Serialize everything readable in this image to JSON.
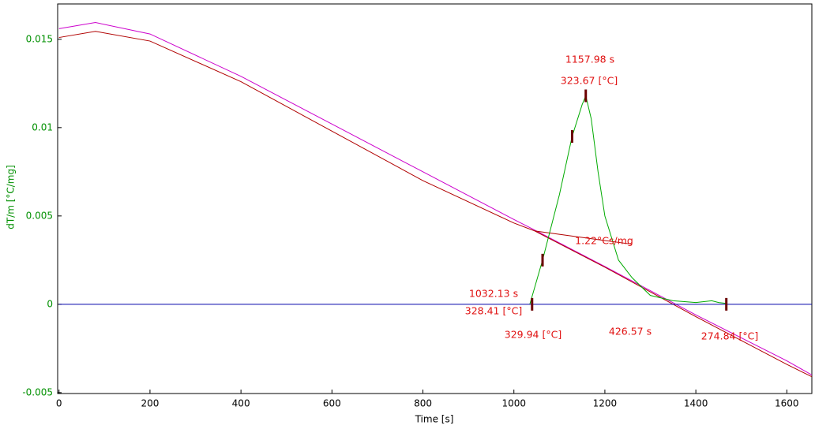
{
  "chart_data": {
    "type": "line",
    "x_label": "Time [s]",
    "y_label": "dT/m  [°C/mg]",
    "xlim": [
      -3,
      1655
    ],
    "ylim": [
      -0.00505,
      0.017
    ],
    "xticks": [
      0,
      200,
      400,
      600,
      800,
      1000,
      1200,
      1400,
      1600
    ],
    "yticks": [
      -0.005,
      0,
      0.005,
      0.01,
      0.015
    ],
    "series": [
      {
        "color": "#cc00cc",
        "x": [
          0,
          80,
          200,
          400,
          600,
          800,
          1000,
          1046,
          1200,
          1400,
          1600,
          1655
        ],
        "values": [
          0.0156,
          0.01595,
          0.0153,
          0.0129,
          0.0102,
          0.0075,
          0.0048,
          0.0042,
          0.00214,
          -0.0006,
          -0.0032,
          -0.004
        ]
      },
      {
        "color": "#b00000",
        "x": [
          0,
          80,
          200,
          400,
          600,
          800,
          1000,
          1046,
          1200,
          1400,
          1600,
          1655
        ],
        "values": [
          0.0151,
          0.01545,
          0.0149,
          0.0126,
          0.0098,
          0.007,
          0.0046,
          0.00415,
          0.0021,
          -0.0007,
          -0.0034,
          -0.0041
        ]
      },
      {
        "color": "#b00000",
        "x": [
          1046,
          1260
        ],
        "values": [
          0.00415,
          0.0034
        ]
      },
      {
        "color": "#00aa00",
        "x": [
          1035,
          1063,
          1100,
          1128,
          1150,
          1158,
          1170,
          1185,
          1200,
          1230,
          1260,
          1300,
          1350,
          1400,
          1435,
          1450,
          1467
        ],
        "values": [
          0,
          0.0025,
          0.0062,
          0.0095,
          0.0113,
          0.0118,
          0.0105,
          0.0075,
          0.005,
          0.0025,
          0.0015,
          0.0005,
          0.0002,
          0.0001,
          0.0002,
          0.0001,
          5e-05
        ]
      },
      {
        "color": "#0000aa",
        "x": [
          0,
          1655
        ],
        "values": [
          0,
          0
        ]
      }
    ],
    "markers": {
      "color": "#6b0000",
      "x": [
        1040,
        1063,
        1128,
        1158,
        1467
      ],
      "values": [
        0,
        0.0025,
        0.0095,
        0.0118,
        0
      ]
    },
    "annotations": [
      "1157.98 s",
      "323.67 [°C]",
      "1.22°Cs/mg",
      "1032.13 s",
      "328.41 [°C]",
      "329.94 [°C]",
      "426.57 s",
      "274.84 [°C]"
    ]
  }
}
